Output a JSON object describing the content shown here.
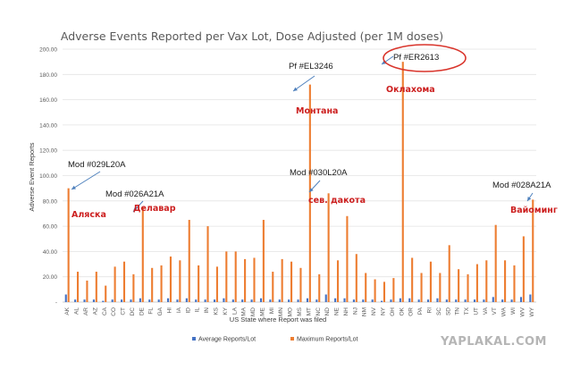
{
  "chart_data": {
    "type": "bar",
    "title": "Adverse Events Reported per Vax Lot, Dose Adjusted (per 1M doses)",
    "xlabel": "US State where Report was filed",
    "ylabel": "Adverse Event Reports",
    "ylim": [
      0,
      200
    ],
    "yticks": [
      "-",
      "20.00",
      "40.00",
      "60.00",
      "80.00",
      "100.00",
      "120.00",
      "140.00",
      "160.00",
      "180.00",
      "200.00"
    ],
    "grid": true,
    "legend_position": "bottom",
    "categories": [
      "AK",
      "AL",
      "AR",
      "AZ",
      "CA",
      "CO",
      "CT",
      "DC",
      "DE",
      "FL",
      "GA",
      "HI",
      "IA",
      "ID",
      "IL",
      "IN",
      "KS",
      "KY",
      "LA",
      "MA",
      "MD",
      "ME",
      "MI",
      "MN",
      "MO",
      "MS",
      "MT",
      "NC",
      "ND",
      "NE",
      "NH",
      "NJ",
      "NM",
      "NV",
      "NY",
      "OH",
      "OK",
      "OR",
      "PA",
      "RI",
      "SC",
      "SD",
      "TN",
      "TX",
      "UT",
      "VA",
      "VT",
      "WA",
      "WI",
      "WV",
      "WY"
    ],
    "series": [
      {
        "name": "Average Reports/Lot",
        "color": "#4472c4",
        "values": [
          6,
          2,
          2,
          2,
          1,
          2,
          2,
          2,
          3,
          2,
          2,
          3,
          2,
          3,
          2,
          2,
          2,
          3,
          2,
          2,
          2,
          3,
          2,
          2,
          2,
          2,
          3,
          2,
          6,
          3,
          3,
          2,
          2,
          2,
          1,
          2,
          3,
          3,
          2,
          2,
          3,
          2,
          2,
          2,
          2,
          2,
          4,
          2,
          2,
          4,
          6
        ]
      },
      {
        "name": "Maximum Reports/Lot",
        "color": "#ed7d31",
        "values": [
          90,
          24,
          17,
          24,
          13,
          28,
          32,
          22,
          75,
          27,
          29,
          36,
          33,
          65,
          29,
          60,
          28,
          40,
          40,
          34,
          35,
          65,
          24,
          34,
          32,
          27,
          172,
          22,
          86,
          33,
          68,
          38,
          23,
          18,
          16,
          19,
          190,
          35,
          23,
          32,
          23,
          45,
          26,
          22,
          30,
          33,
          61,
          33,
          29,
          52,
          81
        ]
      }
    ],
    "annotations": [
      {
        "category": "AK",
        "text": "Mod #029L20A",
        "note": "Аляска"
      },
      {
        "category": "DE",
        "text": "Mod #026A21A",
        "note": "Делавар"
      },
      {
        "category": "MT",
        "text": "Pf #EL3246",
        "note": "Монтана"
      },
      {
        "category": "ND",
        "text": "Mod #030L20A",
        "note": "сев. дакота"
      },
      {
        "category": "OK",
        "text": "Pf #ER2613",
        "note": "Оклахома",
        "highlight_color": "#d9342b"
      },
      {
        "category": "WY",
        "text": "Mod #028A21A",
        "note": "Вайоминг"
      }
    ]
  },
  "watermark": "YAPLAKAL.COM"
}
